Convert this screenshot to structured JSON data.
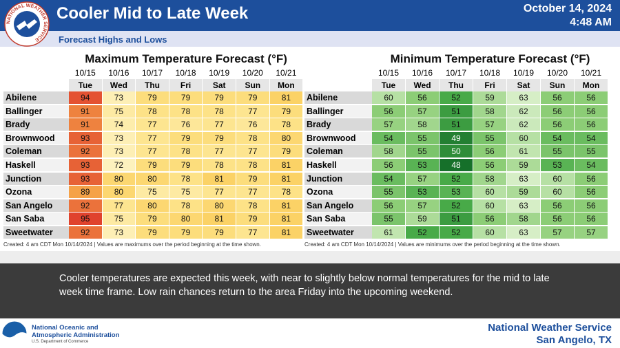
{
  "header": {
    "title": "Cooler Mid to Late Week",
    "date": "October 14, 2024",
    "time": "4:48 AM",
    "subtitle": "Forecast Highs and Lows",
    "logo_text": "NATIONAL WEATHER SERVICE"
  },
  "tables": [
    {
      "title": "Maximum Temperature Forecast (°F)",
      "dates": [
        "10/15",
        "10/16",
        "10/17",
        "10/18",
        "10/19",
        "10/20",
        "10/21"
      ],
      "days": [
        "Tue",
        "Wed",
        "Thu",
        "Fri",
        "Sat",
        "Sun",
        "Mon"
      ],
      "rows": [
        {
          "name": "Abilene",
          "values": [
            94,
            73,
            79,
            79,
            79,
            79,
            81
          ]
        },
        {
          "name": "Ballinger",
          "values": [
            91,
            75,
            78,
            78,
            78,
            77,
            79
          ]
        },
        {
          "name": "Brady",
          "values": [
            91,
            74,
            77,
            76,
            77,
            76,
            78
          ]
        },
        {
          "name": "Brownwood",
          "values": [
            93,
            73,
            77,
            79,
            79,
            78,
            80
          ]
        },
        {
          "name": "Coleman",
          "values": [
            92,
            73,
            77,
            78,
            77,
            77,
            79
          ]
        },
        {
          "name": "Haskell",
          "values": [
            93,
            72,
            79,
            79,
            78,
            78,
            81
          ]
        },
        {
          "name": "Junction",
          "values": [
            93,
            80,
            80,
            78,
            81,
            79,
            81
          ]
        },
        {
          "name": "Ozona",
          "values": [
            89,
            80,
            75,
            75,
            77,
            77,
            78
          ]
        },
        {
          "name": "San Angelo",
          "values": [
            92,
            77,
            80,
            78,
            80,
            78,
            81
          ]
        },
        {
          "name": "San Saba",
          "values": [
            95,
            75,
            79,
            80,
            81,
            79,
            81
          ]
        },
        {
          "name": "Sweetwater",
          "values": [
            92,
            73,
            79,
            79,
            79,
            77,
            81
          ]
        }
      ],
      "note": "Created: 4 am CDT Mon 10/14/2024  |  Values are maximums over the period beginning at the time shown."
    },
    {
      "title": "Minimum Temperature Forecast (°F)",
      "dates": [
        "10/15",
        "10/16",
        "10/17",
        "10/18",
        "10/19",
        "10/20",
        "10/21"
      ],
      "days": [
        "Tue",
        "Wed",
        "Thu",
        "Fri",
        "Sat",
        "Sun",
        "Mon"
      ],
      "rows": [
        {
          "name": "Abilene",
          "values": [
            60,
            56,
            52,
            59,
            63,
            56,
            56
          ]
        },
        {
          "name": "Ballinger",
          "values": [
            56,
            57,
            51,
            58,
            62,
            56,
            56
          ]
        },
        {
          "name": "Brady",
          "values": [
            57,
            58,
            51,
            57,
            62,
            56,
            56
          ]
        },
        {
          "name": "Brownwood",
          "values": [
            54,
            55,
            49,
            55,
            60,
            54,
            54
          ]
        },
        {
          "name": "Coleman",
          "values": [
            58,
            55,
            50,
            56,
            61,
            55,
            55
          ]
        },
        {
          "name": "Haskell",
          "values": [
            56,
            53,
            48,
            56,
            59,
            53,
            54
          ]
        },
        {
          "name": "Junction",
          "values": [
            54,
            57,
            52,
            58,
            63,
            60,
            56
          ]
        },
        {
          "name": "Ozona",
          "values": [
            55,
            53,
            53,
            60,
            59,
            60,
            56
          ]
        },
        {
          "name": "San Angelo",
          "values": [
            56,
            57,
            52,
            60,
            63,
            56,
            56
          ]
        },
        {
          "name": "San Saba",
          "values": [
            55,
            59,
            51,
            56,
            58,
            56,
            56
          ]
        },
        {
          "name": "Sweetwater",
          "values": [
            61,
            52,
            52,
            60,
            63,
            57,
            57
          ]
        }
      ],
      "note": "Created: 4 am CDT Mon 10/14/2024  |  Values are minimums over the period beginning at the time shown."
    }
  ],
  "summary": "Cooler temperatures are expected this week, with near to slightly below normal temperatures for the mid to late week time frame.  Low rain chances return to the area Friday into the upcoming weekend.",
  "footer": {
    "agency_line1": "National Oceanic and",
    "agency_line2": "Atmospheric Administration",
    "department": "U.S. Department of Commerce",
    "office": "National Weather Service",
    "location": "San Angelo, TX"
  }
}
